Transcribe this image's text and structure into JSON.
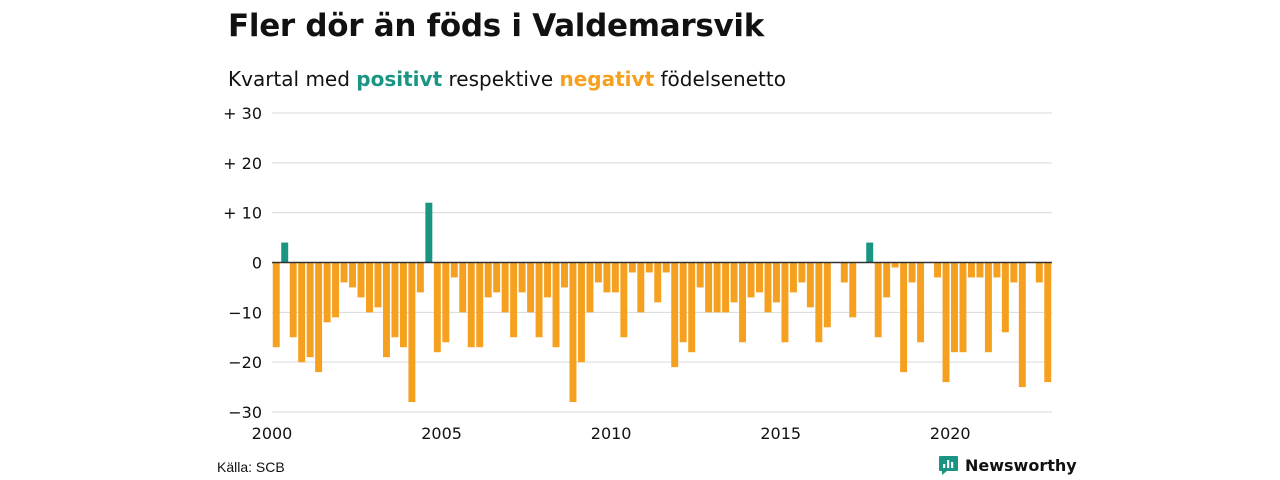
{
  "title": "Fler dör än föds i Valdemarsvik",
  "subtitle": {
    "prefix": "Kvartal med",
    "positive_word": "positivt",
    "middle": "respektive",
    "negative_word": "negativt",
    "suffix": "födelsenetto"
  },
  "colors": {
    "positive": "#1a9583",
    "negative": "#f5a01e",
    "grid": "#d9d9d9",
    "zero_line": "#333333",
    "text": "#111111"
  },
  "source": "Källa: SCB",
  "brand": {
    "name": "Newsworthy",
    "icon": "newsworthy-logo-icon"
  },
  "chart_data": {
    "type": "bar",
    "xlabel": "",
    "ylabel": "",
    "ylim": [
      -30,
      30
    ],
    "yticks": [
      30,
      20,
      10,
      0,
      -10,
      -20,
      -30
    ],
    "ytick_labels": [
      "+ 30",
      "+ 20",
      "+ 10",
      "0",
      "−10",
      "−20",
      "−30"
    ],
    "xlim": [
      2000.0,
      2023.0
    ],
    "xticks": [
      2000,
      2005,
      2010,
      2015,
      2020
    ],
    "xtick_labels": [
      "2000",
      "2005",
      "2010",
      "2015",
      "2020"
    ],
    "x_unit": "quarter",
    "start_period": "2000-Q1",
    "grid": true,
    "values": [
      -17,
      4,
      -15,
      -20,
      -19,
      -22,
      -12,
      -11,
      -4,
      -5,
      -7,
      -10,
      -9,
      -19,
      -15,
      -17,
      -28,
      -6,
      12,
      -18,
      -16,
      -3,
      -10,
      -17,
      -17,
      -7,
      -6,
      -10,
      -15,
      -6,
      -10,
      -15,
      -7,
      -17,
      -5,
      -28,
      -20,
      -10,
      -4,
      -6,
      -6,
      -15,
      -2,
      -10,
      -2,
      -8,
      -2,
      -21,
      -16,
      -18,
      -5,
      -10,
      -10,
      -10,
      -8,
      -16,
      -7,
      -6,
      -10,
      -8,
      -16,
      -6,
      -4,
      -9,
      -16,
      -13,
      0,
      -4,
      -11,
      0,
      4,
      -15,
      -7,
      -1,
      -22,
      -4,
      -16,
      0,
      -3,
      -24,
      -18,
      -18,
      -3,
      -3,
      -18,
      -3,
      -14,
      -4,
      -25,
      0,
      -4,
      -24
    ]
  }
}
